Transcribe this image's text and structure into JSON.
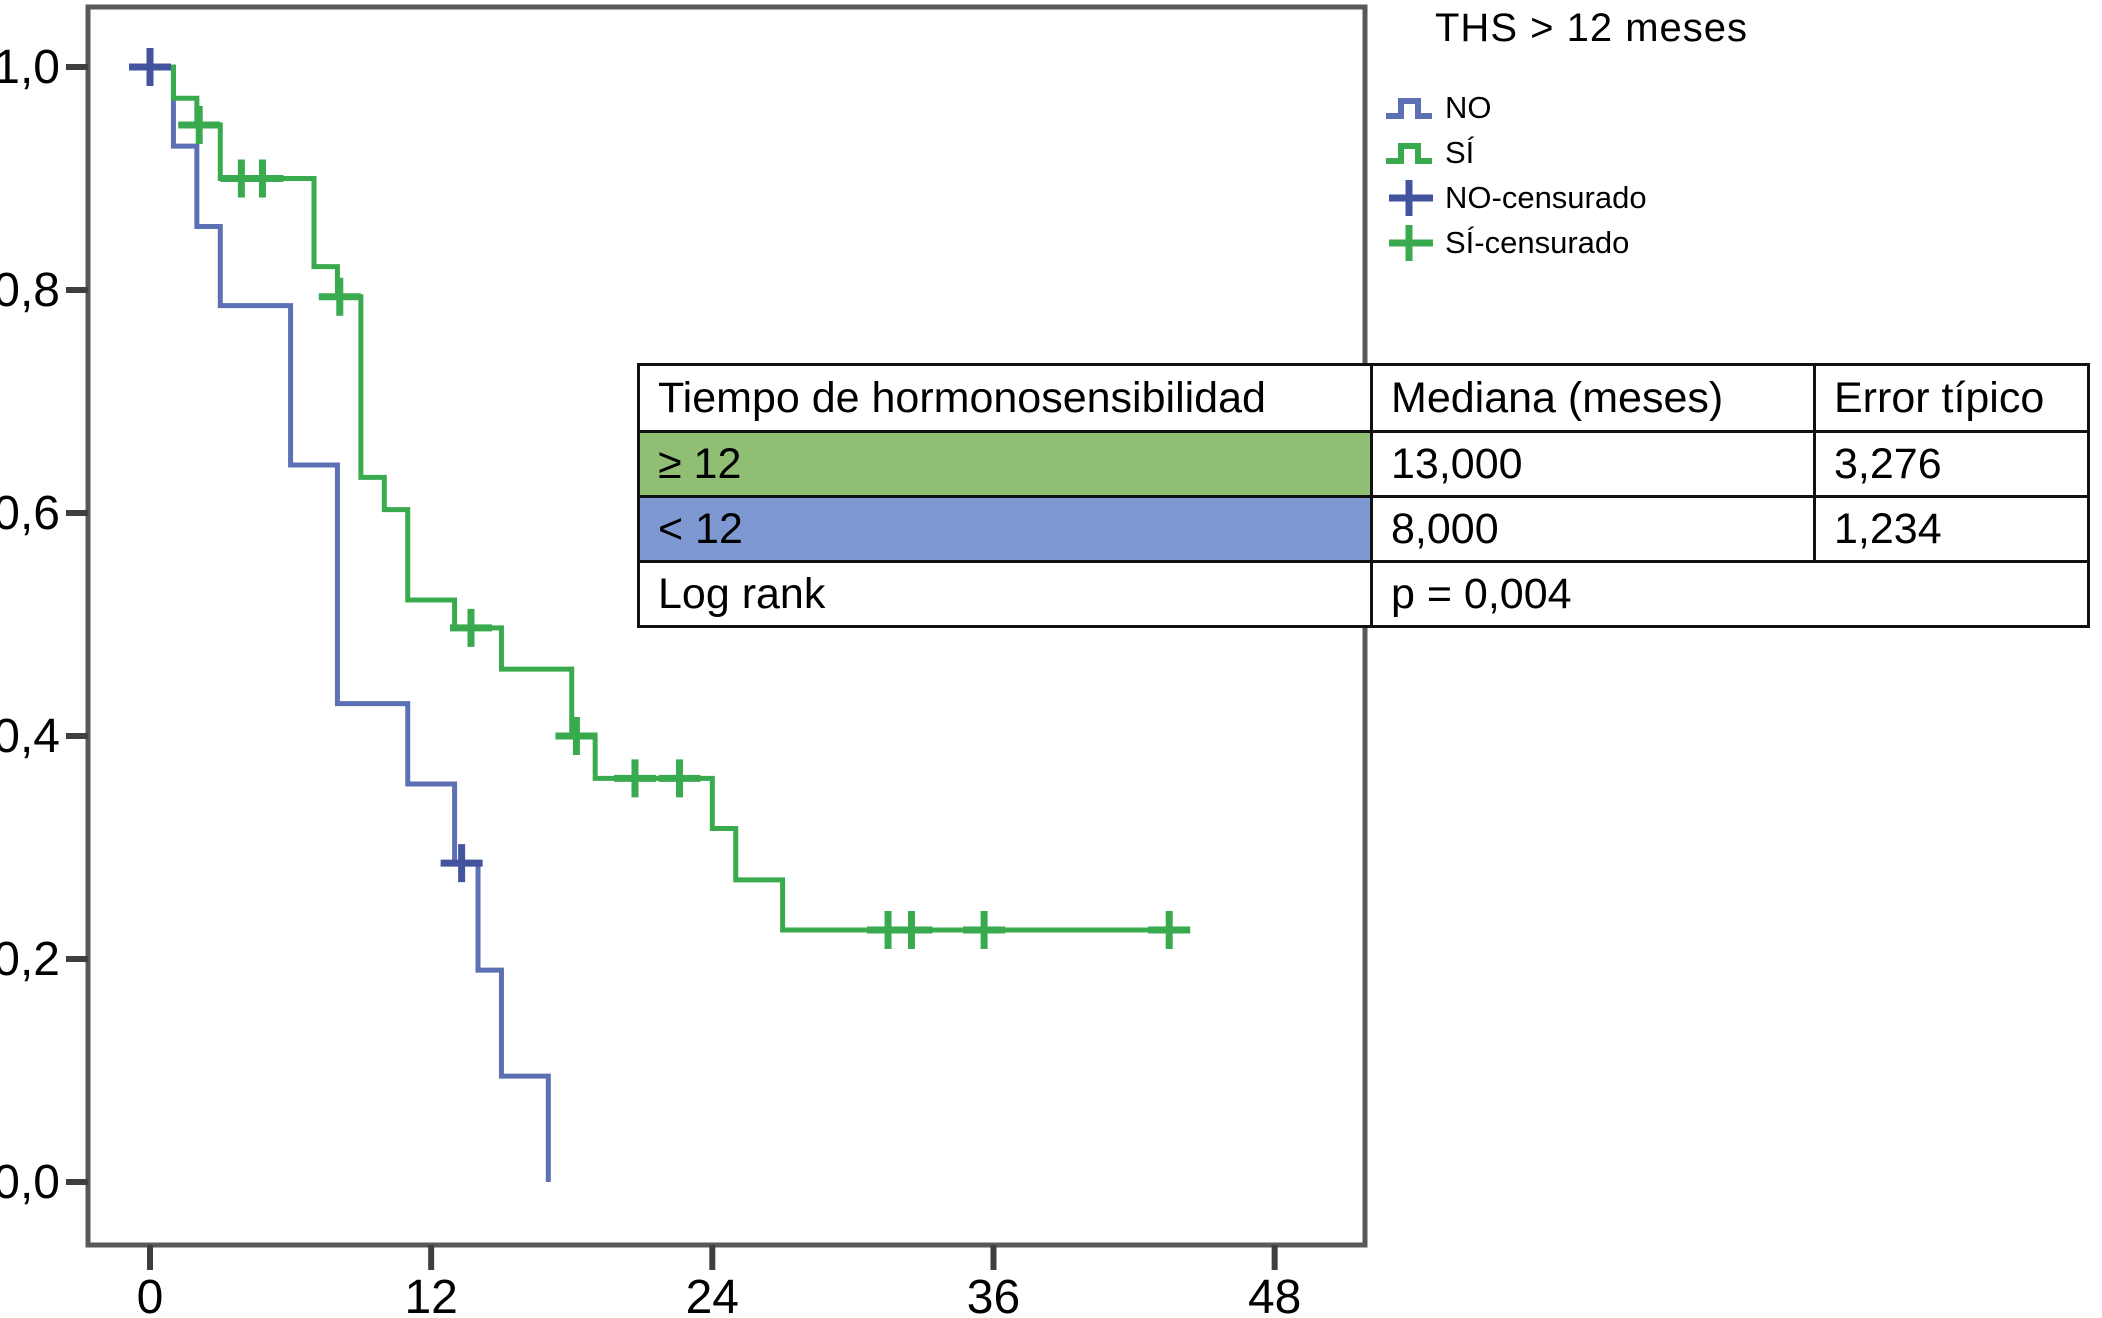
{
  "legend": {
    "title": "THS > 12 meses",
    "items": [
      {
        "label": "NO",
        "symbol": "step",
        "color": "#5c71b4"
      },
      {
        "label": "SÍ",
        "symbol": "step",
        "color": "#3aaa4f"
      },
      {
        "label": "NO-censurado",
        "symbol": "plus",
        "color": "#44539e"
      },
      {
        "label": "SÍ-censurado",
        "symbol": "plus",
        "color": "#3aaa4f"
      }
    ]
  },
  "table": {
    "headers": [
      "Tiempo de hormonosensibilidad",
      "Mediana (meses)",
      "Error típico"
    ],
    "rows": [
      {
        "label": "≥ 12",
        "mediana": "13,000",
        "error": "3,276",
        "row_color": "#90bf73"
      },
      {
        "label": "< 12",
        "mediana": "8,000",
        "error": "1,234",
        "row_color": "#7e98d2"
      },
      {
        "label": "Log rank",
        "p_value": "p = 0,004"
      }
    ]
  },
  "chart_data": {
    "type": "line",
    "subtype": "kaplan-meier-step",
    "title": "",
    "xlabel": "",
    "ylabel": "",
    "legend_title": "THS > 12 meses",
    "legend_position": "top-right",
    "grid": false,
    "xlim": [
      -2.6,
      51.9
    ],
    "ylim": [
      -0.056,
      1.054
    ],
    "x_ticks": [
      0,
      12,
      24,
      36,
      48
    ],
    "x_tick_labels": [
      "0",
      "12",
      "24",
      "36",
      "48"
    ],
    "y_ticks": [
      1.0,
      0.8,
      0.6,
      0.4,
      0.2,
      0.0
    ],
    "y_tick_labels": [
      "1,0",
      "0,8",
      "0,6",
      "0,4",
      "0,2",
      "0,0"
    ],
    "axis_color": "#58595b",
    "series": [
      {
        "name": "NO",
        "group": "THS < 12 meses",
        "color": "#5c71b4",
        "censor_color": "#44539e",
        "start": [
          0,
          1.0
        ],
        "drops": [
          [
            1,
            0.929
          ],
          [
            2,
            0.857
          ],
          [
            3,
            0.786
          ],
          [
            6,
            0.643
          ],
          [
            8,
            0.429
          ],
          [
            11,
            0.357
          ],
          [
            13,
            0.286
          ],
          [
            14,
            0.19
          ],
          [
            15,
            0.095
          ],
          [
            17,
            0.0
          ]
        ],
        "end_time": 17,
        "censored": [
          [
            0,
            1.0
          ],
          [
            13.3,
            0.286
          ]
        ],
        "median_months": "8,000",
        "std_error": "1,234"
      },
      {
        "name": "SÍ",
        "group": "THS ≥ 12 meses",
        "color": "#3aaa4f",
        "censor_color": "#3aaa4f",
        "start": [
          0,
          1.0
        ],
        "drops": [
          [
            1,
            0.972
          ],
          [
            2,
            0.948
          ],
          [
            3,
            0.9
          ],
          [
            7,
            0.821
          ],
          [
            8,
            0.794
          ],
          [
            9,
            0.632
          ],
          [
            10,
            0.603
          ],
          [
            11,
            0.522
          ],
          [
            13,
            0.497
          ],
          [
            15,
            0.46
          ],
          [
            18,
            0.4
          ],
          [
            19,
            0.362
          ],
          [
            24,
            0.317
          ],
          [
            25,
            0.271
          ],
          [
            27,
            0.226
          ]
        ],
        "end_time": 44,
        "censored": [
          [
            2.1,
            0.948
          ],
          [
            3.9,
            0.9
          ],
          [
            4.8,
            0.9
          ],
          [
            8.1,
            0.794
          ],
          [
            13.7,
            0.497
          ],
          [
            18.2,
            0.4
          ],
          [
            20.7,
            0.362
          ],
          [
            22.6,
            0.362
          ],
          [
            31.5,
            0.226
          ],
          [
            32.5,
            0.226
          ],
          [
            35.6,
            0.226
          ],
          [
            43.5,
            0.226
          ]
        ],
        "median_months": "13,000",
        "std_error": "3,276"
      }
    ],
    "log_rank_p": "p = 0,004"
  }
}
